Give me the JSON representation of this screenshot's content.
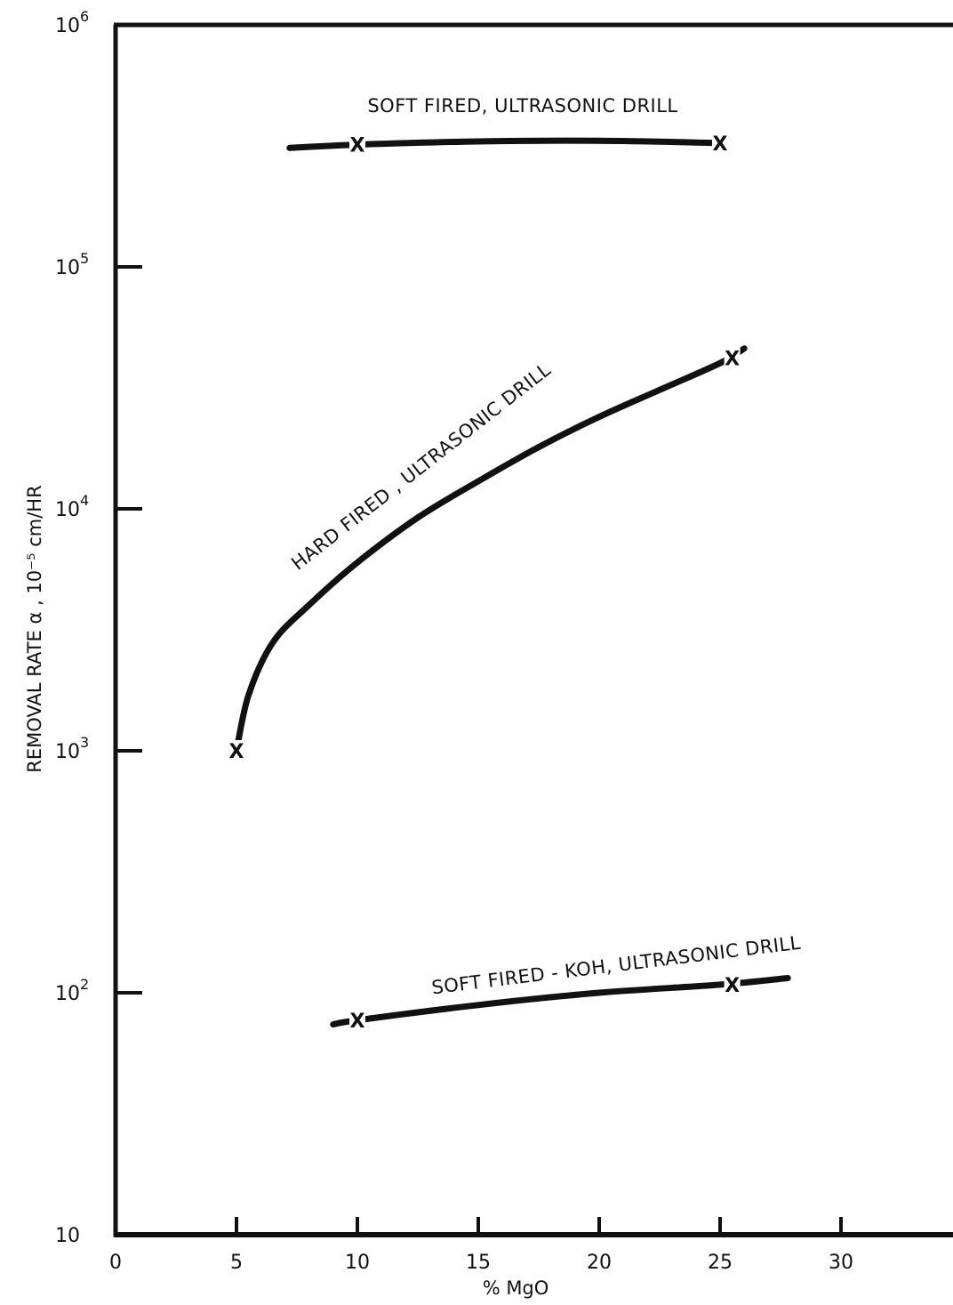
{
  "chart_data": {
    "type": "line",
    "xlabel": "% MgO",
    "ylabel": "REMOVAL RATE α ,  10⁻⁵ cm/HR",
    "y_scale": "log",
    "xlim": [
      0,
      35
    ],
    "ylim": [
      10,
      1000000
    ],
    "grid": false,
    "legend": "none",
    "x_ticks": [
      0,
      5,
      10,
      15,
      20,
      25,
      30
    ],
    "x_tick_labels": [
      "0",
      "5",
      "10",
      "15",
      "20",
      "25",
      "30"
    ],
    "y_ticks": [
      10,
      100,
      1000,
      10000,
      100000,
      1000000
    ],
    "y_tick_labels": [
      {
        "base": "10",
        "exp": ""
      },
      {
        "base": "10",
        "exp": "2"
      },
      {
        "base": "10",
        "exp": "3"
      },
      {
        "base": "10",
        "exp": "4"
      },
      {
        "base": "10",
        "exp": "5"
      },
      {
        "base": "10",
        "exp": "6"
      }
    ],
    "series": [
      {
        "name": "SOFT FIRED, ULTRASONIC DRILL",
        "points": [
          {
            "x": 7.2,
            "y": 310000
          },
          {
            "x": 10,
            "y": 320000
          },
          {
            "x": 15,
            "y": 330000
          },
          {
            "x": 20,
            "y": 332000
          },
          {
            "x": 25,
            "y": 325000
          }
        ],
        "markers": [
          {
            "x": 10,
            "y": 320000
          },
          {
            "x": 25,
            "y": 325000
          }
        ]
      },
      {
        "name": "HARD FIRED , ULTRASONIC DRILL",
        "points": [
          {
            "x": 5,
            "y": 1000
          },
          {
            "x": 5.5,
            "y": 1700
          },
          {
            "x": 6.5,
            "y": 2800
          },
          {
            "x": 8,
            "y": 4000
          },
          {
            "x": 10,
            "y": 6000
          },
          {
            "x": 12.5,
            "y": 9200
          },
          {
            "x": 15,
            "y": 13000
          },
          {
            "x": 17.5,
            "y": 18000
          },
          {
            "x": 20,
            "y": 24000
          },
          {
            "x": 22.5,
            "y": 31000
          },
          {
            "x": 25,
            "y": 40000
          },
          {
            "x": 26,
            "y": 46000
          }
        ],
        "markers": [
          {
            "x": 5,
            "y": 1000
          },
          {
            "x": 25.5,
            "y": 42000
          }
        ]
      },
      {
        "name": "SOFT FIRED - KOH, ULTRASONIC DRILL",
        "points": [
          {
            "x": 9,
            "y": 74.0
          },
          {
            "x": 10,
            "y": 77
          },
          {
            "x": 15,
            "y": 89
          },
          {
            "x": 20,
            "y": 100
          },
          {
            "x": 25,
            "y": 108
          },
          {
            "x": 27.8,
            "y": 115
          }
        ],
        "markers": [
          {
            "x": 10,
            "y": 77
          },
          {
            "x": 25.5,
            "y": 108
          }
        ]
      }
    ],
    "marker_symbol": "X"
  }
}
